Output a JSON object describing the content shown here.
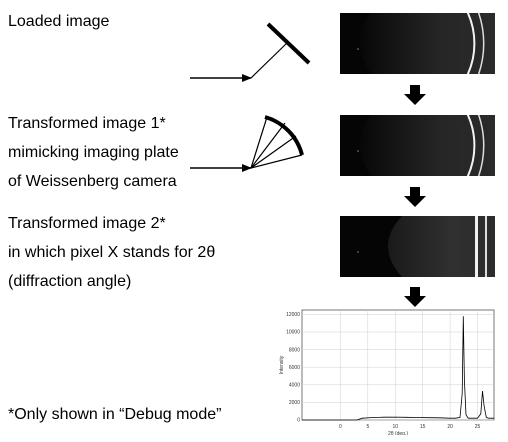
{
  "labels": {
    "loaded": "Loaded image",
    "t1_line1": "Transformed image 1*",
    "t1_line2": "mimicking imaging plate",
    "t1_line3": "of Weissenberg camera",
    "t2_line1": "Transformed image 2*",
    "t2_line2": "in which pixel X stands for 2θ",
    "t2_line3": "(diffraction angle)",
    "footnote": "*Only shown in “Debug mode”"
  },
  "icons": {
    "flow_arrow": "down-arrow-icon",
    "mirror": "flat-plate-icon",
    "fan": "weissenberg-plate-icon"
  },
  "chart_data": {
    "type": "line",
    "title": "",
    "xlabel": "2θ (deg.)",
    "ylabel": "Intensity",
    "xlim": [
      -7,
      28
    ],
    "ylim": [
      0,
      12500
    ],
    "xticks": [
      "0",
      "5",
      "10",
      "15",
      "20",
      "25"
    ],
    "yticks": [
      "0",
      "2000",
      "4000",
      "6000",
      "8000",
      "10000",
      "12000"
    ],
    "grid": true,
    "line_color": "#000000",
    "series": [
      {
        "x": [
          -7,
          -5,
          -3,
          -1,
          0,
          1,
          2,
          3,
          4,
          6,
          8,
          10,
          12,
          14,
          16,
          18,
          20,
          21,
          21.8,
          22.2,
          22.4,
          22.6,
          22.9,
          23.3,
          24,
          25,
          25.6,
          25.9,
          26.2,
          26.6,
          27,
          28
        ],
        "y": [
          0,
          0,
          0,
          0,
          0,
          0,
          0,
          0,
          200,
          280,
          320,
          330,
          310,
          280,
          260,
          250,
          200,
          200,
          300,
          3000,
          11800,
          4500,
          600,
          200,
          200,
          200,
          700,
          3300,
          1600,
          300,
          200,
          200
        ]
      }
    ]
  }
}
